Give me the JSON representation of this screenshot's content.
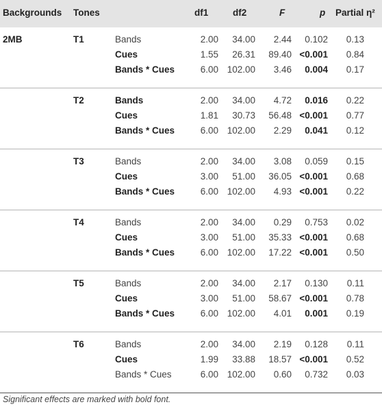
{
  "headers": {
    "background": "Backgrounds",
    "tones": "Tones",
    "df1": "df1",
    "df2": "df2",
    "F": "F",
    "p": "p",
    "partial_eta": "Partial η²"
  },
  "groups": [
    {
      "background": "2MB",
      "tone": "T1",
      "rows": [
        {
          "effect": "Bands",
          "effect_bold": false,
          "df1": "2.00",
          "df2": "34.00",
          "F": "2.44",
          "p": "0.102",
          "p_bold": false,
          "eta": "0.13"
        },
        {
          "effect": "Cues",
          "effect_bold": true,
          "df1": "1.55",
          "df2": "26.31",
          "F": "89.40",
          "p": "<0.001",
          "p_bold": true,
          "eta": "0.84"
        },
        {
          "effect": "Bands * Cues",
          "effect_bold": true,
          "df1": "6.00",
          "df2": "102.00",
          "F": "3.46",
          "p": "0.004",
          "p_bold": true,
          "eta": "0.17"
        }
      ]
    },
    {
      "background": "",
      "tone": "T2",
      "rows": [
        {
          "effect": "Bands",
          "effect_bold": true,
          "df1": "2.00",
          "df2": "34.00",
          "F": "4.72",
          "p": "0.016",
          "p_bold": true,
          "eta": "0.22"
        },
        {
          "effect": "Cues",
          "effect_bold": true,
          "df1": "1.81",
          "df2": "30.73",
          "F": "56.48",
          "p": "<0.001",
          "p_bold": true,
          "eta": "0.77"
        },
        {
          "effect": "Bands * Cues",
          "effect_bold": true,
          "df1": "6.00",
          "df2": "102.00",
          "F": "2.29",
          "p": "0.041",
          "p_bold": true,
          "eta": "0.12"
        }
      ]
    },
    {
      "background": "",
      "tone": "T3",
      "rows": [
        {
          "effect": "Bands",
          "effect_bold": false,
          "df1": "2.00",
          "df2": "34.00",
          "F": "3.08",
          "p": "0.059",
          "p_bold": false,
          "eta": "0.15"
        },
        {
          "effect": "Cues",
          "effect_bold": true,
          "df1": "3.00",
          "df2": "51.00",
          "F": "36.05",
          "p": "<0.001",
          "p_bold": true,
          "eta": "0.68"
        },
        {
          "effect": "Bands * Cues",
          "effect_bold": true,
          "df1": "6.00",
          "df2": "102.00",
          "F": "4.93",
          "p": "<0.001",
          "p_bold": true,
          "eta": "0.22"
        }
      ]
    },
    {
      "background": "",
      "tone": "T4",
      "rows": [
        {
          "effect": "Bands",
          "effect_bold": false,
          "df1": "2.00",
          "df2": "34.00",
          "F": "0.29",
          "p": "0.753",
          "p_bold": false,
          "eta": "0.02"
        },
        {
          "effect": "Cues",
          "effect_bold": true,
          "df1": "3.00",
          "df2": "51.00",
          "F": "35.33",
          "p": "<0.001",
          "p_bold": true,
          "eta": "0.68"
        },
        {
          "effect": "Bands * Cues",
          "effect_bold": true,
          "df1": "6.00",
          "df2": "102.00",
          "F": "17.22",
          "p": "<0.001",
          "p_bold": true,
          "eta": "0.50"
        }
      ]
    },
    {
      "background": "",
      "tone": "T5",
      "rows": [
        {
          "effect": "Bands",
          "effect_bold": false,
          "df1": "2.00",
          "df2": "34.00",
          "F": "2.17",
          "p": "0.130",
          "p_bold": false,
          "eta": "0.11"
        },
        {
          "effect": "Cues",
          "effect_bold": true,
          "df1": "3.00",
          "df2": "51.00",
          "F": "58.67",
          "p": "<0.001",
          "p_bold": true,
          "eta": "0.78"
        },
        {
          "effect": "Bands * Cues",
          "effect_bold": true,
          "df1": "6.00",
          "df2": "102.00",
          "F": "4.01",
          "p": "0.001",
          "p_bold": true,
          "eta": "0.19"
        }
      ]
    },
    {
      "background": "",
      "tone": "T6",
      "rows": [
        {
          "effect": "Bands",
          "effect_bold": false,
          "df1": "2.00",
          "df2": "34.00",
          "F": "2.19",
          "p": "0.128",
          "p_bold": false,
          "eta": "0.11"
        },
        {
          "effect": "Cues",
          "effect_bold": true,
          "df1": "1.99",
          "df2": "33.88",
          "F": "18.57",
          "p": "<0.001",
          "p_bold": true,
          "eta": "0.52"
        },
        {
          "effect": "Bands * Cues",
          "effect_bold": false,
          "df1": "6.00",
          "df2": "102.00",
          "F": "0.60",
          "p": "0.732",
          "p_bold": false,
          "eta": "0.03"
        }
      ]
    }
  ],
  "footnote": "Significant effects are marked with bold font."
}
